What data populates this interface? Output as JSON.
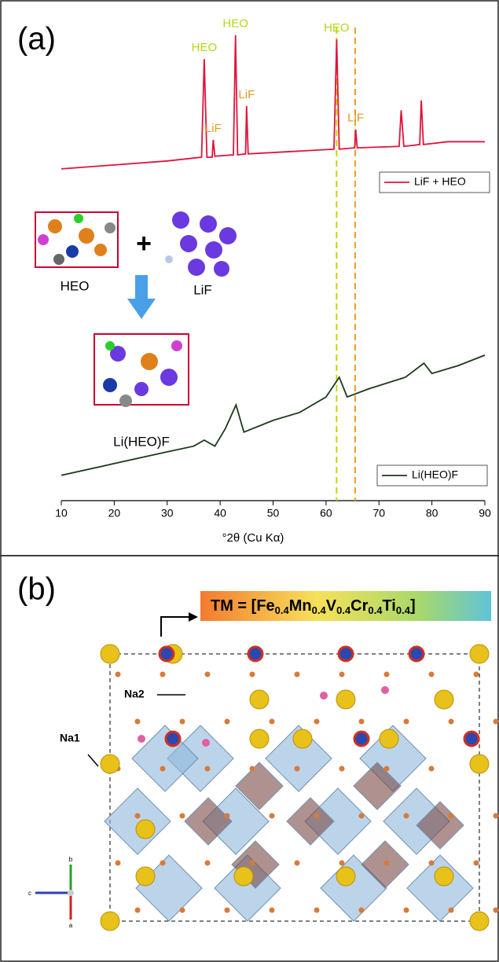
{
  "chart_data": {
    "type": "line",
    "panel_label": "(a)",
    "xlabel": "°2θ (Cu Kα)",
    "xlim": [
      10,
      90
    ],
    "xticks": [
      10,
      20,
      30,
      40,
      50,
      60,
      70,
      80,
      90
    ],
    "ylim": [
      0,
      100
    ],
    "series": [
      {
        "name": "LiF + HEO",
        "color": "#e0143c",
        "x": [
          10,
          30,
          36.5,
          37,
          37.5,
          38.5,
          38.7,
          39,
          42.5,
          42.9,
          43.3,
          44.8,
          45,
          45.3,
          61.5,
          62,
          62.5,
          65.4,
          65.6,
          65.9,
          73.8,
          74.2,
          74.7,
          77.7,
          78,
          78.4,
          83,
          90
        ],
        "values": [
          70.7,
          72.4,
          73.2,
          94.1,
          73.2,
          73.2,
          76.9,
          73.4,
          73.7,
          99.2,
          73.7,
          73.9,
          84.1,
          73.9,
          74.9,
          98.3,
          74.9,
          75.2,
          79.1,
          75.2,
          75.5,
          83.2,
          75.5,
          75.9,
          85.3,
          75.9,
          76.5,
          76.5
        ]
      },
      {
        "name": "Li(HEO)F",
        "color": "#1a3a1a",
        "x": [
          10,
          20,
          30,
          35,
          37,
          39,
          41,
          43,
          44.5,
          50,
          55,
          60,
          62.5,
          64,
          68,
          75,
          78.5,
          80,
          85,
          90
        ],
        "values": [
          5.4,
          7.9,
          10.4,
          11.6,
          12.9,
          11.6,
          15.4,
          20.4,
          14.6,
          17.1,
          18.8,
          22.1,
          26.3,
          22.1,
          23.8,
          26.3,
          29.3,
          27.1,
          28.8,
          31.0
        ]
      }
    ],
    "annotations": [
      {
        "text": "HEO",
        "x": 37,
        "color": "#b8d418"
      },
      {
        "text": "LiF",
        "x": 38.7,
        "color": "#e09a20"
      },
      {
        "text": "HEO",
        "x": 42.9,
        "color": "#b8d418"
      },
      {
        "text": "LiF",
        "x": 45,
        "color": "#e09a20"
      },
      {
        "text": "HEO",
        "x": 62,
        "color": "#b8d418"
      },
      {
        "text": "LiF",
        "x": 65.6,
        "color": "#e09a20"
      }
    ],
    "reference_lines": [
      {
        "x": 62,
        "color": "#c8d400"
      },
      {
        "x": 65.5,
        "color": "#e8a020"
      }
    ],
    "schematic_labels": [
      "HEO",
      "+",
      "LiF",
      "Li(HEO)F"
    ]
  },
  "structure": {
    "panel_label": "(b)",
    "formula": [
      "TM = [Fe",
      "0.4",
      "Mn",
      "0.4",
      "V",
      "0.4",
      "Cr",
      "0.4",
      "Ti",
      "0.4",
      "]"
    ],
    "site_labels": [
      "Na2",
      "Na1"
    ],
    "axes": [
      "b",
      "c",
      "a"
    ]
  }
}
